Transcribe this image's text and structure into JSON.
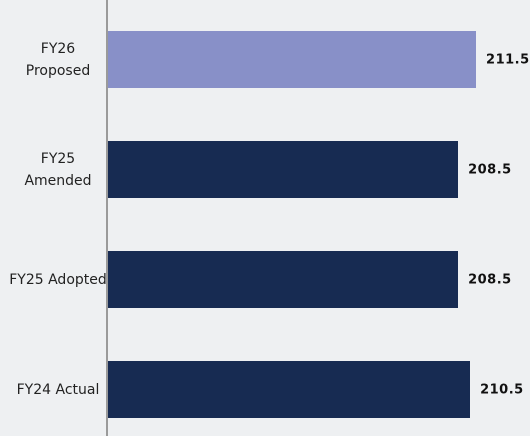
{
  "chart_data": {
    "type": "bar",
    "orientation": "horizontal",
    "categories": [
      "FY26 Proposed",
      "FY25 Amended",
      "FY25 Adopted",
      "FY24 Actual"
    ],
    "values": [
      211.5,
      208.5,
      208.5,
      210.5
    ],
    "colors": [
      "#8890c8",
      "#172b52",
      "#172b52",
      "#172b52"
    ],
    "xlim": [
      150,
      215
    ]
  }
}
